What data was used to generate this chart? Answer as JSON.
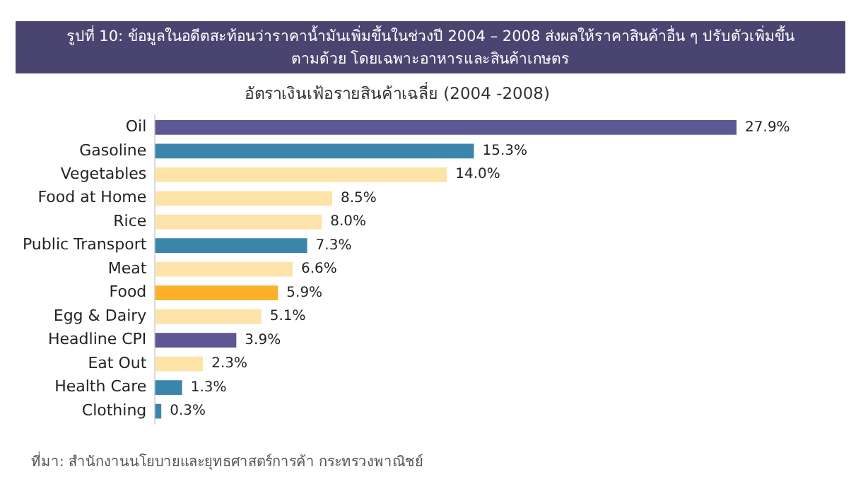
{
  "chart_data": {
    "type": "bar",
    "orientation": "horizontal",
    "title": "รูปที่ 10: ข้อมูลในอดีตสะท้อนว่าราคาน้ำมันเพิ่มขึ้นในช่วงปี 2004 – 2008 ส่งผลให้ราคาสินค้าอื่น ๆ ปรับตัวเพิ่มขึ้นตามด้วย โดยเฉพาะอาหารและสินค้าเกษตร",
    "subtitle": "อัตราเงินเฟ้อรายสินค้าเฉลี่ย (2004 -2008)",
    "categories": [
      "Oil",
      "Gasoline",
      "Vegetables",
      "Food at Home",
      "Rice",
      "Public Transport",
      "Meat",
      "Food",
      "Egg & Dairy",
      "Headline CPI",
      "Eat Out",
      "Health Care",
      "Clothing"
    ],
    "values": [
      27.9,
      15.3,
      14.0,
      8.5,
      8.0,
      7.3,
      6.6,
      5.9,
      5.1,
      3.9,
      2.3,
      1.3,
      0.3
    ],
    "value_labels": [
      "27.9%",
      "15.3%",
      "14.0%",
      "8.5%",
      "8.0%",
      "7.3%",
      "6.6%",
      "5.9%",
      "5.1%",
      "3.9%",
      "2.3%",
      "1.3%",
      "0.3%"
    ],
    "colors": [
      "#5d5894",
      "#3a86ab",
      "#fde3a7",
      "#fde3a7",
      "#fde3a7",
      "#3a86ab",
      "#fde3a7",
      "#fbb12a",
      "#fde3a7",
      "#5d5894",
      "#fde3a7",
      "#3a86ab",
      "#3a86ab"
    ],
    "tick_labels": "y",
    "grid": false,
    "legend": false,
    "annotations": [
      "ที่มา: สำนักงานนโยบายและยุทธศาสตร์การค้า กระทรวงพาณิชย์"
    ]
  }
}
